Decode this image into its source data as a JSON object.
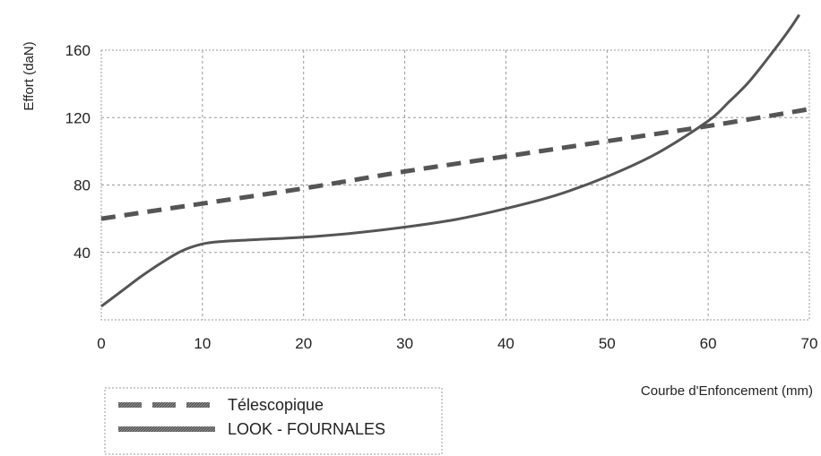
{
  "chart_data": {
    "type": "line",
    "title": "",
    "xlabel": "Courbe d'Enfoncement (mm)",
    "ylabel": "Effort (daN)",
    "xlim": [
      0,
      70
    ],
    "ylim": [
      0,
      160
    ],
    "xticks": [
      0,
      10,
      20,
      30,
      40,
      50,
      60,
      70
    ],
    "yticks": [
      40,
      80,
      120,
      160
    ],
    "grid": true,
    "legend_position": "bottom-left",
    "series": [
      {
        "name": "Télescopique",
        "style": "dashed",
        "color": "#555555",
        "x": [
          0,
          10,
          20,
          30,
          40,
          50,
          60,
          70
        ],
        "y": [
          60,
          69,
          78,
          88,
          97,
          106,
          115,
          125
        ]
      },
      {
        "name": "LOOK - FOURNALES",
        "style": "solid",
        "color": "#555555",
        "x": [
          0,
          2,
          4,
          6,
          8,
          10,
          12,
          15,
          20,
          25,
          30,
          35,
          40,
          45,
          50,
          55,
          60,
          62,
          64,
          66,
          68,
          69
        ],
        "y": [
          8,
          17,
          26,
          34,
          41,
          45,
          46.5,
          47.5,
          49,
          51.5,
          55,
          59.5,
          66,
          74,
          85,
          99,
          118,
          129,
          141,
          156,
          172,
          181
        ]
      }
    ]
  }
}
